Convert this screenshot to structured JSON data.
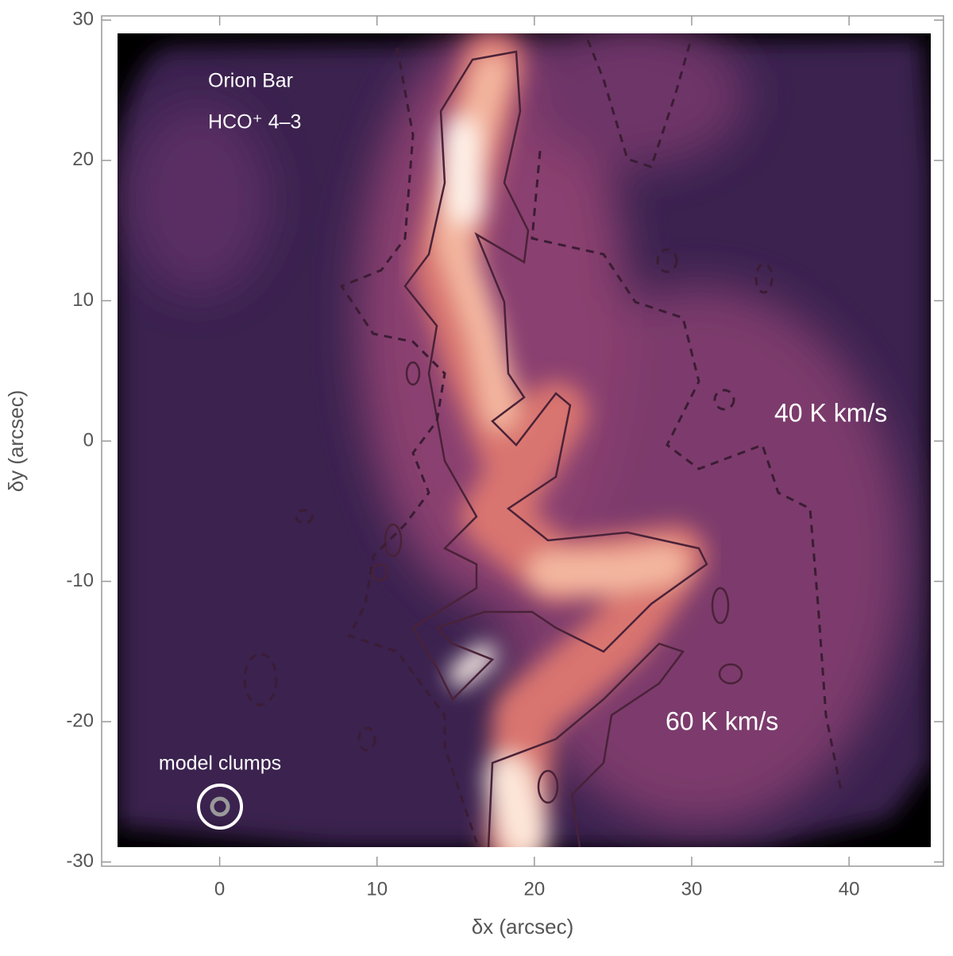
{
  "chart_data": {
    "type": "image",
    "x_label": "δx (arcsec)",
    "y_label": "δy (arcsec)",
    "xlim": [
      -7.5,
      46
    ],
    "ylim": [
      -30.3,
      30.3
    ],
    "xticks": [
      0,
      10,
      20,
      30,
      40
    ],
    "yticks": [
      -30,
      -20,
      -10,
      0,
      10,
      20,
      30
    ],
    "annotations": [
      "Orion Bar",
      "HCO⁺ 4–3",
      "40 K km/s",
      "60 K km/s",
      "model clumps"
    ]
  }
}
